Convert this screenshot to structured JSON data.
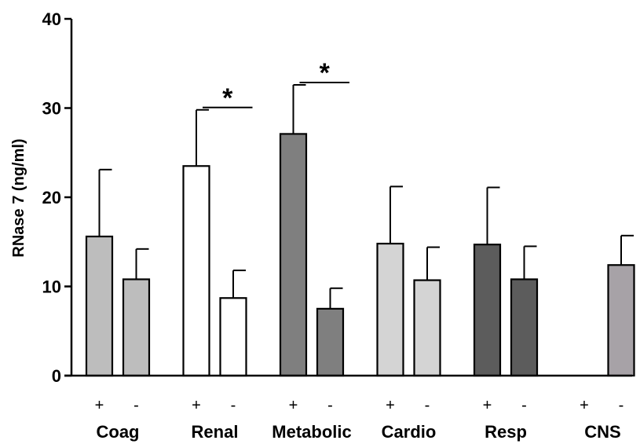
{
  "chart_data": {
    "type": "bar",
    "title": "",
    "xlabel": "",
    "ylabel": "RNase 7 (ng/ml)",
    "ylim": [
      0,
      40
    ],
    "yticks": [
      "0",
      "10",
      "20",
      "30",
      "40"
    ],
    "categories": [
      "Coag",
      "Renal",
      "Metabolic",
      "Cardio",
      "Resp",
      "CNS"
    ],
    "subcategories": [
      "+",
      "-"
    ],
    "bars": [
      {
        "group": "Coag",
        "sign": "+",
        "value": 15.6,
        "error": 7.5,
        "color": "#bdbdbd"
      },
      {
        "group": "Coag",
        "sign": "-",
        "value": 10.8,
        "error": 3.4,
        "color": "#bdbdbd"
      },
      {
        "group": "Renal",
        "sign": "+",
        "value": 23.5,
        "error": 6.3,
        "color": "#ffffff"
      },
      {
        "group": "Renal",
        "sign": "-",
        "value": 8.7,
        "error": 3.1,
        "color": "#ffffff"
      },
      {
        "group": "Metabolic",
        "sign": "+",
        "value": 27.1,
        "error": 5.5,
        "color": "#7f7f7f"
      },
      {
        "group": "Metabolic",
        "sign": "-",
        "value": 7.5,
        "error": 2.3,
        "color": "#7f7f7f"
      },
      {
        "group": "Cardio",
        "sign": "+",
        "value": 14.8,
        "error": 6.4,
        "color": "#d4d4d4"
      },
      {
        "group": "Cardio",
        "sign": "-",
        "value": 10.7,
        "error": 3.7,
        "color": "#d4d4d4"
      },
      {
        "group": "Resp",
        "sign": "+",
        "value": 14.7,
        "error": 6.4,
        "color": "#5c5c5c"
      },
      {
        "group": "Resp",
        "sign": "-",
        "value": 10.8,
        "error": 3.7,
        "color": "#5c5c5c"
      },
      {
        "group": "CNS",
        "sign": "+",
        "value": 0,
        "error": 0,
        "color": "#a7a2a7"
      },
      {
        "group": "CNS",
        "sign": "-",
        "value": 12.4,
        "error": 3.3,
        "color": "#a7a2a7"
      }
    ],
    "significance": [
      {
        "group": "Renal",
        "label": "*"
      },
      {
        "group": "Metabolic",
        "label": "*"
      }
    ]
  }
}
